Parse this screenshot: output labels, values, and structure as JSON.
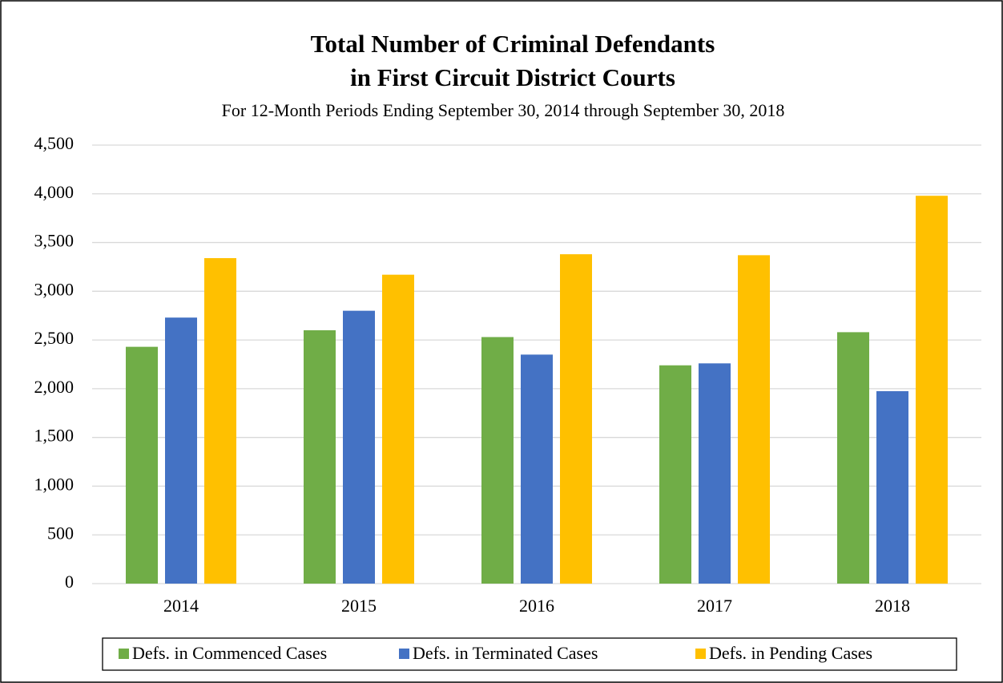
{
  "chart_data": {
    "type": "bar",
    "title": [
      "Total Number of Criminal Defendants",
      "in First Circuit District Courts"
    ],
    "subtitle": "For 12-Month Periods Ending September 30, 2014 through September 30, 2018",
    "categories": [
      "2014",
      "2015",
      "2016",
      "2017",
      "2018"
    ],
    "series": [
      {
        "name": "Defs. in Commenced Cases",
        "color": "#70ad47",
        "values": [
          2430,
          2600,
          2530,
          2240,
          2580
        ]
      },
      {
        "name": "Defs. in Terminated Cases",
        "color": "#4472c4",
        "values": [
          2730,
          2800,
          2350,
          2260,
          1975
        ]
      },
      {
        "name": "Defs. in Pending Cases",
        "color": "#ffc000",
        "values": [
          3340,
          3170,
          3380,
          3370,
          3980
        ]
      }
    ],
    "ylim": [
      0,
      4500
    ],
    "yticks": [
      0,
      500,
      {
        "value": 1000,
        "label": "1,000"
      },
      {
        "value": 1500,
        "label": "1,500"
      },
      {
        "value": 2000,
        "label": "2,000"
      },
      {
        "value": 2500,
        "label": "2,500"
      },
      {
        "value": 3000,
        "label": "3,000"
      },
      {
        "value": 3500,
        "label": "3,500"
      },
      {
        "value": 4000,
        "label": "4,000"
      },
      {
        "value": 4500,
        "label": "4,500"
      }
    ],
    "grid": true,
    "legend": "bottom"
  }
}
